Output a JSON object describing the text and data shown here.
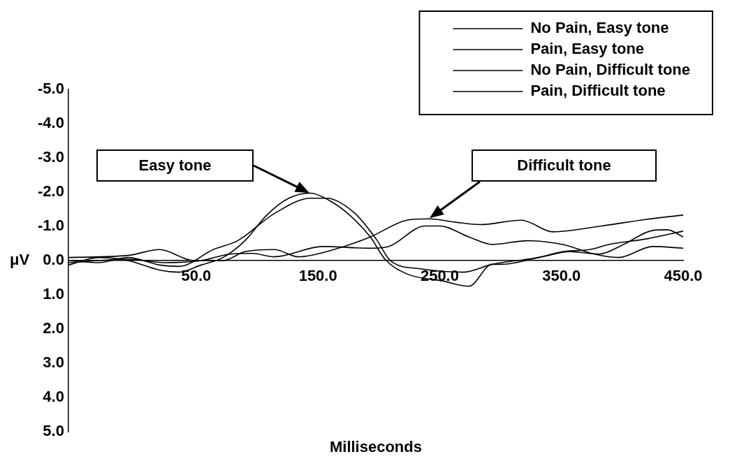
{
  "chart_data": {
    "type": "line",
    "xlabel": "Milliseconds",
    "ylabel": "μV",
    "xlim": [
      -55,
      450
    ],
    "xticks": [
      {
        "value": 50,
        "label": "50.0"
      },
      {
        "value": 150,
        "label": "150.0"
      },
      {
        "value": 250,
        "label": "250.0"
      },
      {
        "value": 350,
        "label": "350.0"
      },
      {
        "value": 450,
        "label": "450.0"
      }
    ],
    "ylim": [
      5,
      -5
    ],
    "yticks": [
      {
        "value": -5,
        "label": "-5.0"
      },
      {
        "value": -4,
        "label": "-4.0"
      },
      {
        "value": -3,
        "label": "-3.0"
      },
      {
        "value": -2,
        "label": "-2.0"
      },
      {
        "value": -1,
        "label": "-1.0"
      },
      {
        "value": 0,
        "label": "0.0"
      },
      {
        "value": 1,
        "label": "1.0"
      },
      {
        "value": 2,
        "label": "2.0"
      },
      {
        "value": 3,
        "label": "3.0"
      },
      {
        "value": 4,
        "label": "4.0"
      },
      {
        "value": 5,
        "label": "5.0"
      }
    ],
    "grid": false,
    "legend": "top right",
    "marker": "none",
    "line_style": "solid",
    "annotations": [
      "Easy tone",
      "Difficult tone"
    ],
    "series": [
      {
        "name": "No Pain, Easy tone",
        "color": "#000000",
        "x": [
          -55,
          -30,
          -6,
          20,
          36,
          64,
          84,
          114,
          144,
          157,
          180,
          198,
          210,
          234,
          269,
          293,
          301,
          331,
          351,
          373,
          389,
          421,
          450
        ],
        "values": [
          0,
          0.06,
          -0.09,
          0.13,
          0.17,
          -0.32,
          -0.58,
          -1.37,
          -1.82,
          -1.82,
          -1.39,
          -0.62,
          0.02,
          0.24,
          0.34,
          0.11,
          0.06,
          -0.09,
          -0.26,
          -0.32,
          -0.47,
          -0.64,
          -0.86
        ]
      },
      {
        "name": "Pain, Easy tone",
        "color": "#000000",
        "x": [
          -55,
          -30,
          -6,
          20,
          36,
          54,
          72,
          90,
          108,
          126,
          144,
          159,
          174,
          193,
          205,
          223,
          253,
          274,
          293,
          301,
          334,
          357,
          381,
          401,
          425,
          437,
          450
        ],
        "values": [
          0.13,
          -0.09,
          0,
          0.28,
          0.34,
          0.13,
          -0.09,
          -0.58,
          -1.33,
          -1.82,
          -1.97,
          -1.76,
          -1.39,
          -0.69,
          -0.04,
          0.39,
          0.6,
          0.75,
          0.11,
          0.11,
          -0.11,
          -0.26,
          -0.19,
          -0.47,
          -0.88,
          -0.9,
          -0.69
        ]
      },
      {
        "name": "No Pain, Difficult tone",
        "color": "#000000",
        "x": [
          -55,
          -6,
          20,
          48,
          72,
          90,
          114,
          134,
          163,
          193,
          223,
          241,
          263,
          283,
          317,
          343,
          383,
          419,
          450
        ],
        "values": [
          -0.09,
          -0.15,
          -0.32,
          0,
          0,
          -0.26,
          -0.32,
          -0.11,
          -0.32,
          -0.69,
          -1.18,
          -1.22,
          -1.12,
          -1.05,
          -1.18,
          -0.84,
          -1.01,
          -1.2,
          -1.33
        ]
      },
      {
        "name": "Pain, Difficult tone",
        "color": "#000000",
        "x": [
          -55,
          -6,
          24,
          54,
          78,
          96,
          114,
          154,
          193,
          208,
          238,
          250,
          274,
          293,
          322,
          351,
          377,
          397,
          425,
          450
        ],
        "values": [
          0.06,
          -0.04,
          0.06,
          0,
          -0.19,
          -0.21,
          -0.11,
          -0.41,
          -0.36,
          -0.41,
          -1.01,
          -1.01,
          -0.69,
          -0.47,
          -0.58,
          -0.47,
          -0.19,
          -0.09,
          -0.41,
          -0.36
        ]
      }
    ]
  }
}
